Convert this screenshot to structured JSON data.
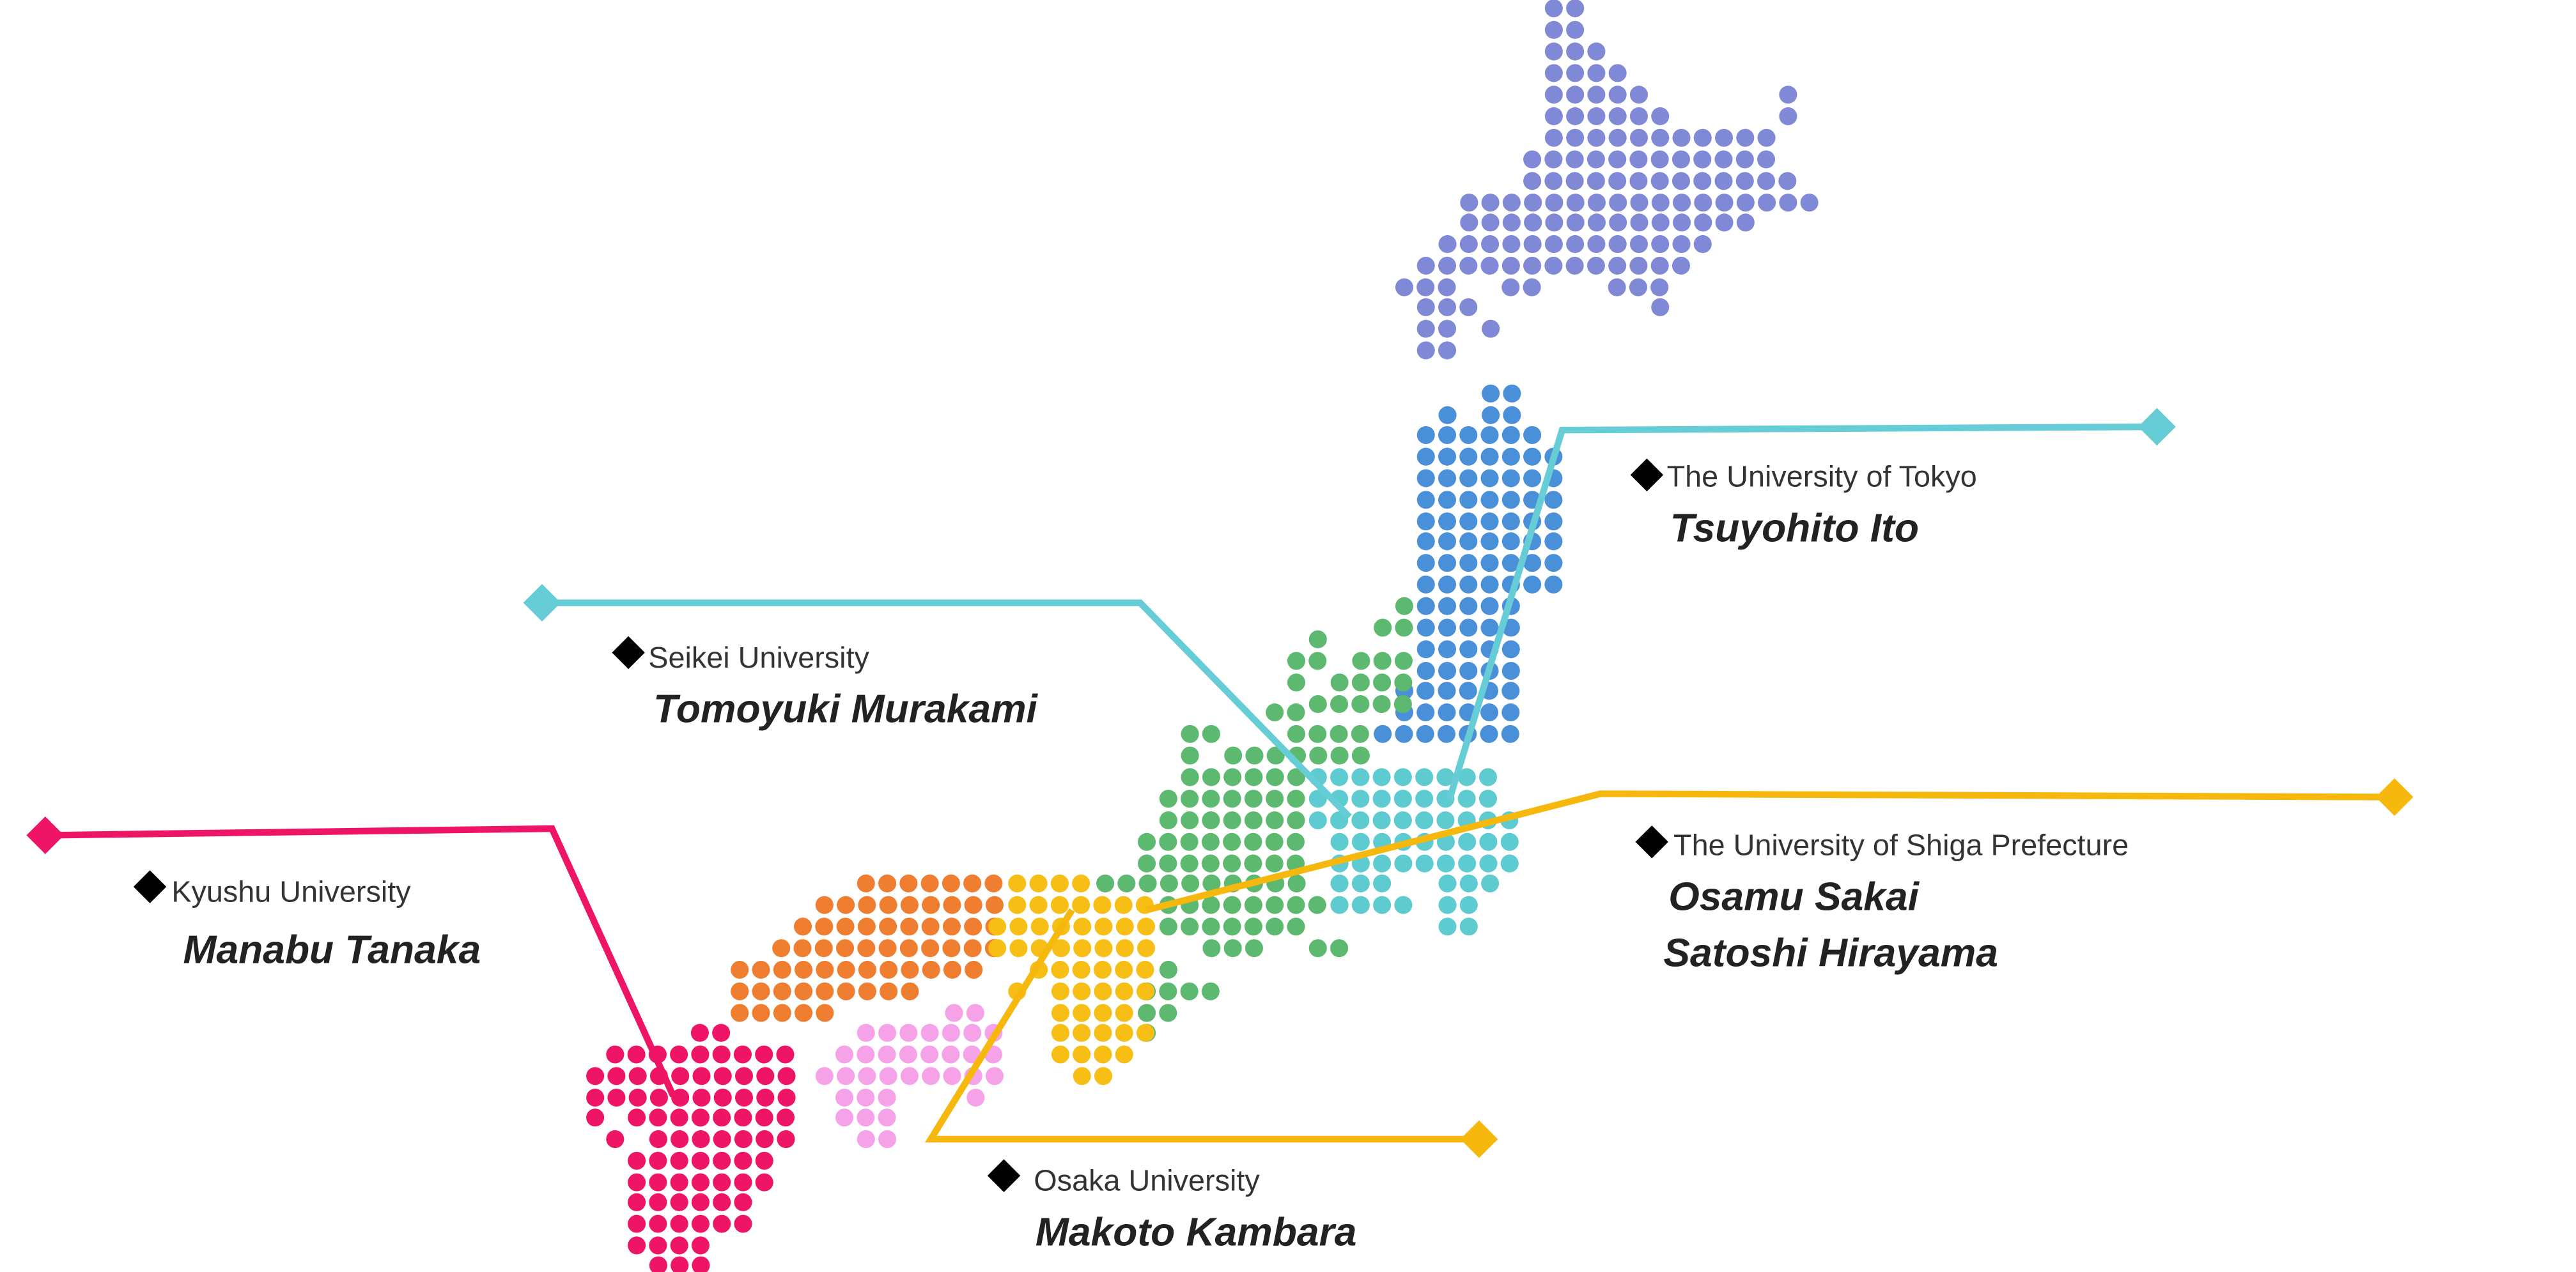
{
  "labels": [
    {
      "university": "The University of Tokyo",
      "members": [
        "Tsuyohito Ito"
      ]
    },
    {
      "university": "Seikei University",
      "members": [
        "Tomoyuki Murakami"
      ]
    },
    {
      "university": "Kyushu University",
      "members": [
        "Manabu Tanaka"
      ]
    },
    {
      "university": "The University of Shiga Prefecture",
      "members": [
        "Osamu Sakai",
        "Satoshi Hirayama"
      ]
    },
    {
      "university": "Osaka University",
      "members": [
        "Makoto Kambara"
      ]
    }
  ]
}
